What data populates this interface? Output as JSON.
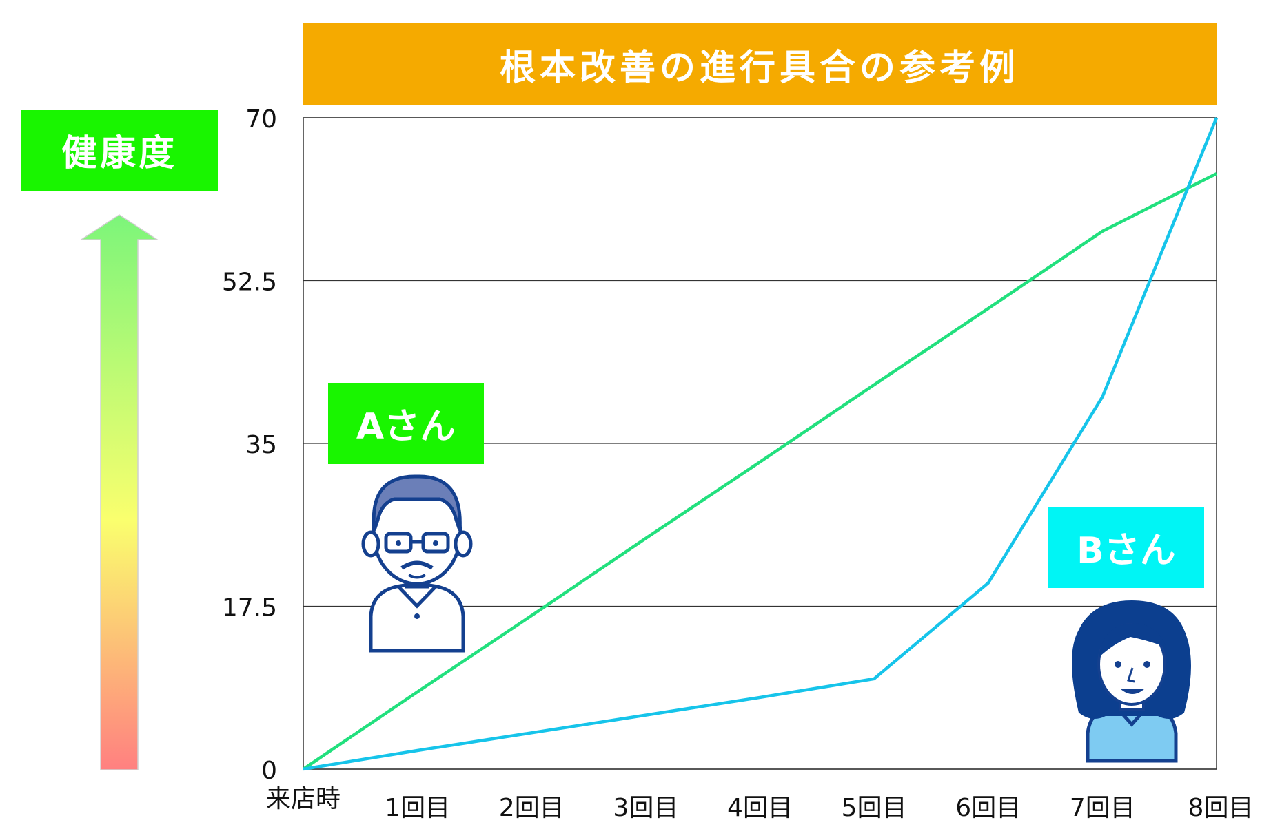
{
  "chart_data": {
    "type": "line",
    "title": "根本改善の進行具合の参考例",
    "categories": [
      "来店時",
      "1回目",
      "2回目",
      "3回目",
      "4回目",
      "5回目",
      "6回目",
      "7回目",
      "8回目"
    ],
    "ylim": [
      0,
      70
    ],
    "yticks": [
      "0",
      "17.5",
      "35",
      "52.5",
      "70"
    ],
    "grid": true,
    "series": [
      {
        "name": "Aさん",
        "color": "#22e07e",
        "values": [
          0,
          8.3,
          16.5,
          24.8,
          33,
          41.3,
          49.5,
          57.8,
          64
        ]
      },
      {
        "name": "Bさん",
        "color": "#16c4ea",
        "values": [
          0,
          2,
          3.9,
          5.8,
          7.7,
          9.7,
          20,
          40,
          70
        ]
      }
    ]
  },
  "health_label": "健康度",
  "person_labels": {
    "a": "Aさん",
    "b": "Bさん"
  },
  "colors": {
    "title_bg": "#f5aa00",
    "health_bg": "#19f500",
    "label_a_bg": "#19f500",
    "label_b_bg": "#00f5f5",
    "arrow_top": "#7cf57a",
    "arrow_mid": "#faff6e",
    "arrow_bottom": "#ff8080"
  }
}
